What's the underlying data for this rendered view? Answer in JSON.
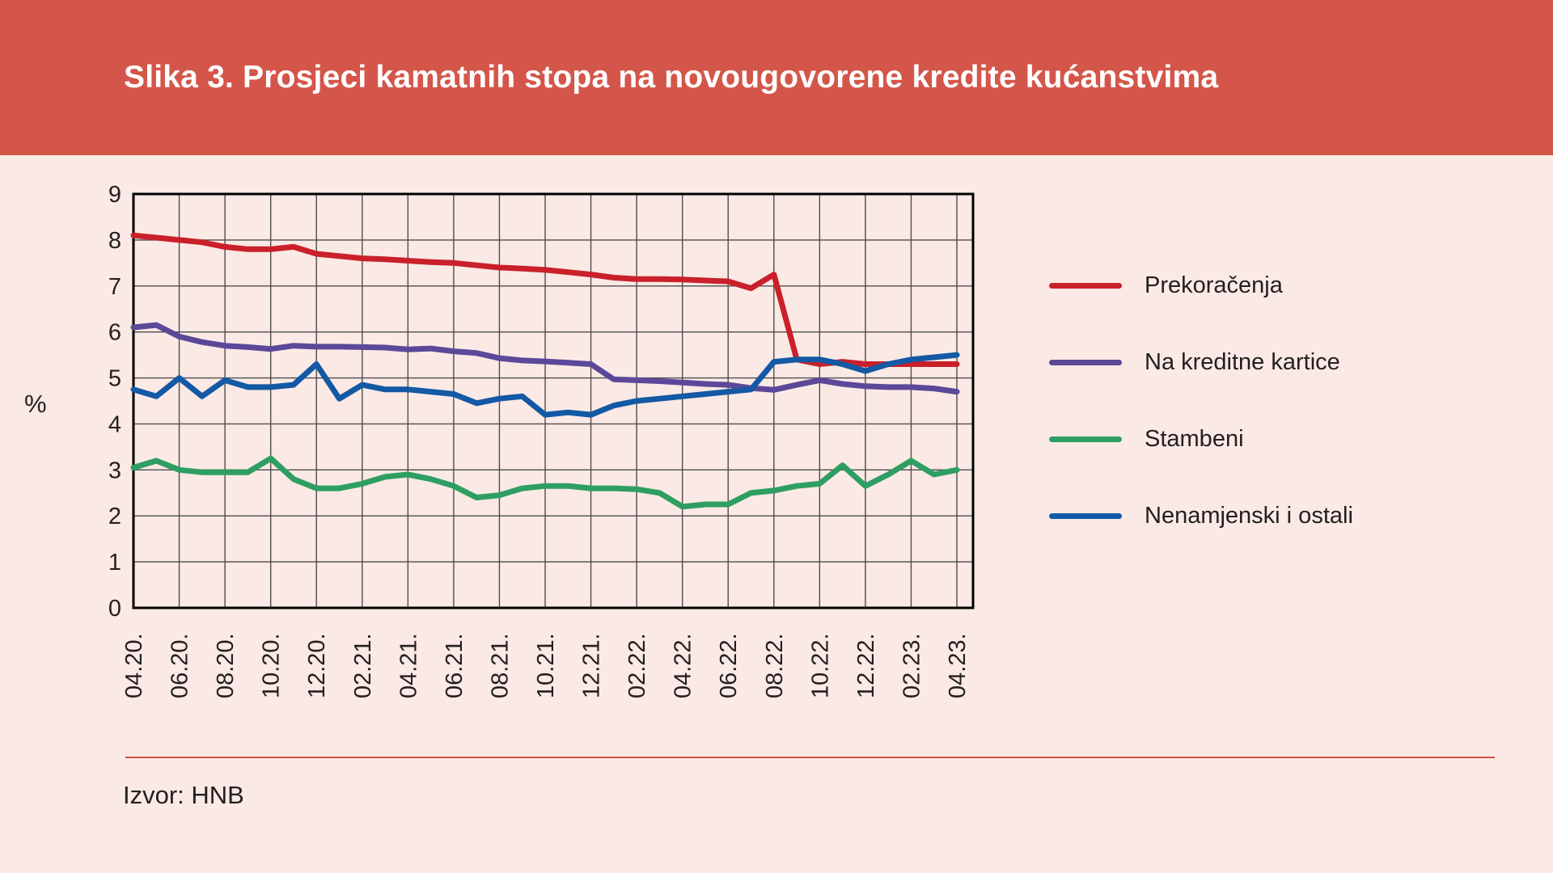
{
  "title": "Slika 3. Prosjeci kamatnih stopa na novougovorene kredite kućanstvima",
  "source": "Izvor: HNB",
  "colors": {
    "page_background": "#FAE9E5",
    "header_background": "#D4564A",
    "title_text": "#FFFFFF",
    "body_text": "#231F20",
    "grid_line": "#4D4D4D",
    "axis_frame": "#000000",
    "footer_rule": "#CD5245"
  },
  "chart_data": {
    "type": "line",
    "title": "Slika 3. Prosjeci kamatnih stopa na novougovorene kredite kućanstvima",
    "ylabel": "%",
    "xlabel": "",
    "ylim": [
      0,
      9
    ],
    "yticks": [
      0,
      1,
      2,
      3,
      4,
      5,
      6,
      7,
      8,
      9
    ],
    "grid": true,
    "legend_position": "right",
    "categories": [
      "04.20",
      "05.20",
      "06.20",
      "07.20",
      "08.20",
      "09.20",
      "10.20",
      "11.20",
      "12.20",
      "01.21",
      "02.21",
      "03.21",
      "04.21",
      "05.21",
      "06.21",
      "07.21",
      "08.21",
      "09.21",
      "10.21",
      "11.21",
      "12.21",
      "01.22",
      "02.22",
      "03.22",
      "04.22",
      "05.22",
      "06.22",
      "07.22",
      "08.22",
      "09.22",
      "10.22",
      "11.22",
      "12.22",
      "01.23",
      "02.23",
      "03.23",
      "04.23"
    ],
    "x_tick_labels": [
      "04.20.",
      "06.20.",
      "08.20.",
      "10.20.",
      "12.20.",
      "02.21.",
      "04.21.",
      "06.21.",
      "08.21.",
      "10.21.",
      "12.21.",
      "02.22.",
      "04.22.",
      "06.22.",
      "08.22.",
      "10.22.",
      "12.22.",
      "02.23.",
      "04.23."
    ],
    "series": [
      {
        "name": "Prekoračenja",
        "color": "#C9202A",
        "values": [
          8.1,
          8.05,
          8.0,
          7.95,
          7.85,
          7.8,
          7.8,
          7.85,
          7.7,
          7.65,
          7.6,
          7.58,
          7.55,
          7.52,
          7.5,
          7.45,
          7.4,
          7.38,
          7.35,
          7.3,
          7.25,
          7.18,
          7.15,
          7.15,
          7.14,
          7.12,
          7.1,
          6.95,
          7.25,
          5.4,
          5.3,
          5.35,
          5.3,
          5.3,
          5.3,
          5.3,
          5.3
        ]
      },
      {
        "name": "Na kreditne kartice",
        "color": "#5C4899",
        "values": [
          6.1,
          6.15,
          5.9,
          5.78,
          5.7,
          5.67,
          5.63,
          5.7,
          5.68,
          5.68,
          5.67,
          5.66,
          5.62,
          5.64,
          5.58,
          5.54,
          5.43,
          5.38,
          5.36,
          5.33,
          5.3,
          4.97,
          4.95,
          4.93,
          4.9,
          4.87,
          4.85,
          4.78,
          4.74,
          4.85,
          4.95,
          4.87,
          4.82,
          4.8,
          4.8,
          4.77,
          4.7
        ]
      },
      {
        "name": "Stambeni",
        "color": "#2E9E63",
        "values": [
          3.05,
          3.2,
          3.0,
          2.95,
          2.95,
          2.95,
          3.25,
          2.8,
          2.6,
          2.6,
          2.7,
          2.85,
          2.9,
          2.8,
          2.65,
          2.4,
          2.45,
          2.6,
          2.65,
          2.65,
          2.6,
          2.6,
          2.58,
          2.5,
          2.2,
          2.25,
          2.25,
          2.5,
          2.55,
          2.65,
          2.7,
          3.1,
          2.65,
          2.9,
          3.2,
          2.9,
          3.0
        ]
      },
      {
        "name": "Nenamjenski i ostali",
        "color": "#1359A5",
        "values": [
          4.75,
          4.6,
          5.0,
          4.6,
          4.95,
          4.8,
          4.8,
          4.85,
          5.3,
          4.55,
          4.85,
          4.75,
          4.75,
          4.7,
          4.65,
          4.45,
          4.55,
          4.6,
          4.2,
          4.25,
          4.2,
          4.4,
          4.5,
          4.55,
          4.6,
          4.65,
          4.7,
          4.75,
          5.35,
          5.4,
          5.4,
          5.3,
          5.15,
          5.3,
          5.4,
          5.45,
          5.5
        ]
      }
    ]
  }
}
